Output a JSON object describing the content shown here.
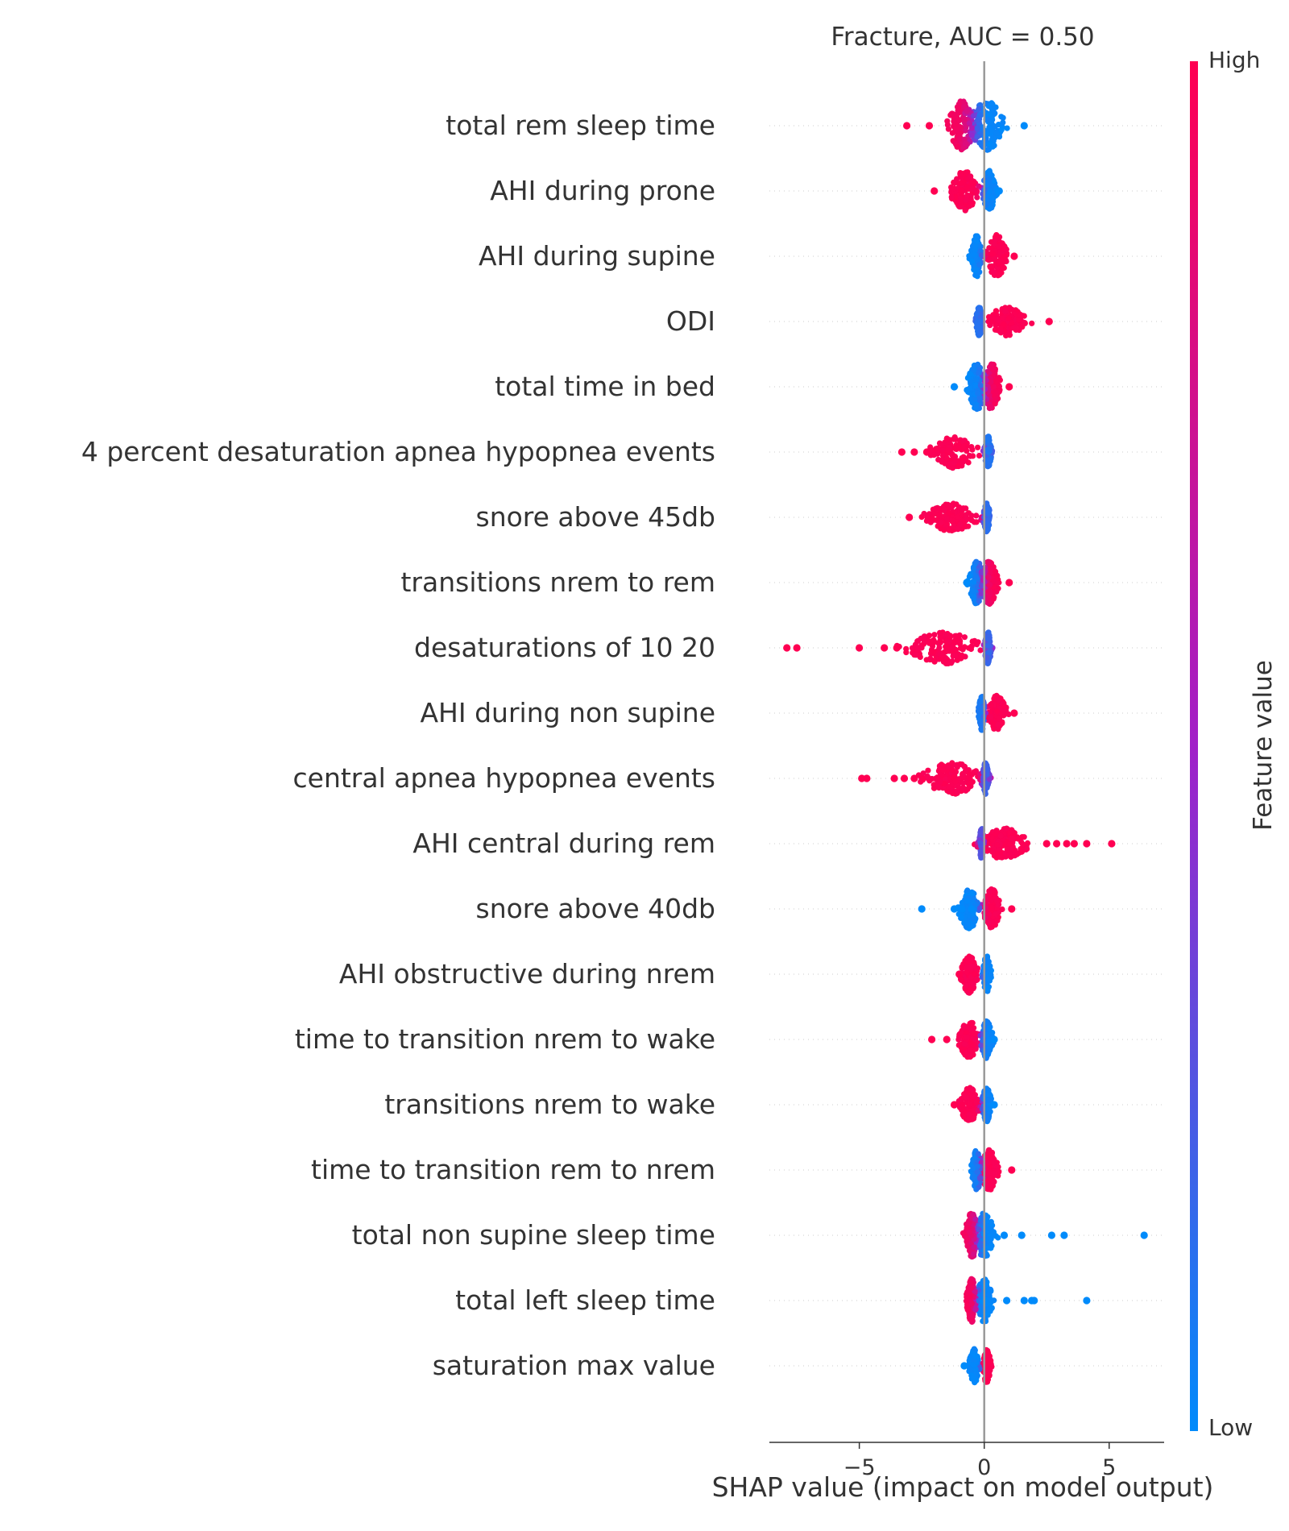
{
  "chart_data": {
    "type": "scatter",
    "variant": "shap-violin-summary",
    "title": "Fracture, AUC =  0.50",
    "xlabel": "SHAP value (impact on model output)",
    "xlim": [
      -8.6,
      7.2
    ],
    "xticks": [
      {
        "value": -5,
        "label": "−5"
      },
      {
        "value": 0,
        "label": "0"
      },
      {
        "value": 5,
        "label": "5"
      }
    ],
    "colorbar": {
      "label": "Feature value",
      "high_label": "High",
      "low_label": "Low",
      "high_color": "#ff0052",
      "low_color": "#008bfb"
    },
    "features": [
      {
        "name": "total rem sleep time",
        "low_center": 0.1,
        "low_spread": 1.1,
        "high_center": -0.9,
        "high_spread": 0.8,
        "width": 0.85,
        "outliers": [
          {
            "x": -3.1,
            "c": "high"
          },
          {
            "x": -2.2,
            "c": "high"
          },
          {
            "x": 1.6,
            "c": "low"
          }
        ]
      },
      {
        "name": "AHI during prone",
        "low_center": 0.2,
        "low_spread": 0.4,
        "high_center": -0.8,
        "high_spread": 0.8,
        "width": 0.7,
        "outliers": [
          {
            "x": -2.0,
            "c": "high"
          },
          {
            "x": 0.6,
            "c": "low"
          }
        ]
      },
      {
        "name": "AHI during supine",
        "low_center": -0.3,
        "low_spread": 0.3,
        "high_center": 0.5,
        "high_spread": 0.6,
        "width": 0.75,
        "outliers": [
          {
            "x": 1.2,
            "c": "high"
          }
        ]
      },
      {
        "name": "ODI",
        "low_center": -0.2,
        "low_spread": 0.2,
        "high_center": 0.9,
        "high_spread": 1.2,
        "width": 0.5,
        "outliers": [
          {
            "x": 2.6,
            "c": "high"
          }
        ]
      },
      {
        "name": "total time in bed",
        "low_center": -0.3,
        "low_spread": 0.6,
        "high_center": 0.3,
        "high_spread": 0.5,
        "width": 0.8,
        "outliers": [
          {
            "x": -1.2,
            "c": "low"
          },
          {
            "x": 1.0,
            "c": "high"
          }
        ]
      },
      {
        "name": "4 percent desaturation apnea hypopnea events",
        "low_center": 0.15,
        "low_spread": 0.2,
        "high_center": -1.2,
        "high_spread": 1.4,
        "width": 0.55,
        "outliers": [
          {
            "x": -3.3,
            "c": "high"
          },
          {
            "x": -2.8,
            "c": "high"
          },
          {
            "x": -2.3,
            "c": "high"
          }
        ]
      },
      {
        "name": "snore above 45db",
        "low_center": 0.1,
        "low_spread": 0.2,
        "high_center": -1.3,
        "high_spread": 1.6,
        "width": 0.5,
        "outliers": [
          {
            "x": -3.0,
            "c": "high"
          }
        ]
      },
      {
        "name": "transitions nrem to rem",
        "low_center": -0.3,
        "low_spread": 0.5,
        "high_center": 0.2,
        "high_spread": 0.5,
        "width": 0.75,
        "outliers": [
          {
            "x": -0.7,
            "c": "low"
          },
          {
            "x": 1.0,
            "c": "high"
          }
        ]
      },
      {
        "name": "desaturations of 10 20",
        "low_center": 0.15,
        "low_spread": 0.2,
        "high_center": -1.6,
        "high_spread": 2.2,
        "width": 0.55,
        "outliers": [
          {
            "x": -7.9,
            "c": "high"
          },
          {
            "x": -7.5,
            "c": "high"
          },
          {
            "x": -5.0,
            "c": "high"
          },
          {
            "x": -4.0,
            "c": "high"
          },
          {
            "x": -3.5,
            "c": "high"
          }
        ]
      },
      {
        "name": "AHI during non supine",
        "low_center": -0.1,
        "low_spread": 0.2,
        "high_center": 0.5,
        "high_spread": 0.6,
        "width": 0.6,
        "outliers": [
          {
            "x": 1.2,
            "c": "high"
          }
        ]
      },
      {
        "name": "central apnea hypopnea events",
        "low_center": 0.05,
        "low_spread": 0.2,
        "high_center": -1.3,
        "high_spread": 1.8,
        "width": 0.55,
        "outliers": [
          {
            "x": -4.9,
            "c": "high"
          },
          {
            "x": -4.7,
            "c": "high"
          },
          {
            "x": -3.6,
            "c": "high"
          },
          {
            "x": -3.2,
            "c": "high"
          },
          {
            "x": -2.8,
            "c": "high"
          }
        ]
      },
      {
        "name": "AHI central during rem",
        "low_center": -0.1,
        "low_spread": 0.15,
        "high_center": 0.8,
        "high_spread": 1.4,
        "width": 0.55,
        "outliers": [
          {
            "x": 2.5,
            "c": "high"
          },
          {
            "x": 2.9,
            "c": "high"
          },
          {
            "x": 3.3,
            "c": "high"
          },
          {
            "x": 3.6,
            "c": "high"
          },
          {
            "x": 4.1,
            "c": "high"
          },
          {
            "x": 5.1,
            "c": "high"
          }
        ]
      },
      {
        "name": "snore above 40db",
        "low_center": -0.6,
        "low_spread": 0.6,
        "high_center": 0.3,
        "high_spread": 0.5,
        "width": 0.7,
        "outliers": [
          {
            "x": -2.5,
            "c": "low"
          },
          {
            "x": -1.2,
            "c": "low"
          },
          {
            "x": -0.9,
            "c": "low"
          },
          {
            "x": -0.5,
            "c": "low"
          },
          {
            "x": 1.1,
            "c": "high"
          }
        ]
      },
      {
        "name": "AHI obstructive during nrem",
        "low_center": 0.1,
        "low_spread": 0.25,
        "high_center": -0.6,
        "high_spread": 0.5,
        "width": 0.65,
        "outliers": [
          {
            "x": -1.0,
            "c": "high"
          }
        ]
      },
      {
        "name": "time to transition nrem to wake",
        "low_center": 0.1,
        "low_spread": 0.35,
        "high_center": -0.6,
        "high_spread": 0.6,
        "width": 0.65,
        "outliers": [
          {
            "x": -2.1,
            "c": "high"
          },
          {
            "x": -1.5,
            "c": "high"
          },
          {
            "x": 0.4,
            "c": "low"
          }
        ]
      },
      {
        "name": "transitions nrem to wake",
        "low_center": 0.1,
        "low_spread": 0.3,
        "high_center": -0.6,
        "high_spread": 0.6,
        "width": 0.6,
        "outliers": [
          {
            "x": -1.2,
            "c": "high"
          },
          {
            "x": 0.4,
            "c": "low"
          }
        ]
      },
      {
        "name": "time to transition rem to nrem",
        "low_center": -0.3,
        "low_spread": 0.3,
        "high_center": 0.2,
        "high_spread": 0.5,
        "width": 0.7,
        "outliers": [
          {
            "x": 1.1,
            "c": "high"
          }
        ]
      },
      {
        "name": "total non supine sleep time",
        "low_center": 0.0,
        "low_spread": 0.6,
        "high_center": -0.5,
        "high_spread": 0.4,
        "width": 0.8,
        "outliers": [
          {
            "x": 0.8,
            "c": "low"
          },
          {
            "x": 1.5,
            "c": "low"
          },
          {
            "x": 2.7,
            "c": "low"
          },
          {
            "x": 3.2,
            "c": "low"
          },
          {
            "x": 6.4,
            "c": "low"
          }
        ]
      },
      {
        "name": "total left sleep time",
        "low_center": 0.0,
        "low_spread": 0.5,
        "high_center": -0.5,
        "high_spread": 0.3,
        "width": 0.75,
        "outliers": [
          {
            "x": 0.9,
            "c": "low"
          },
          {
            "x": 1.6,
            "c": "low"
          },
          {
            "x": 1.9,
            "c": "low"
          },
          {
            "x": 2.0,
            "c": "low"
          },
          {
            "x": 4.1,
            "c": "low"
          }
        ]
      },
      {
        "name": "saturation max value",
        "low_center": -0.4,
        "low_spread": 0.3,
        "high_center": 0.1,
        "high_spread": 0.25,
        "width": 0.6,
        "outliers": [
          {
            "x": -0.8,
            "c": "low"
          }
        ]
      }
    ]
  }
}
